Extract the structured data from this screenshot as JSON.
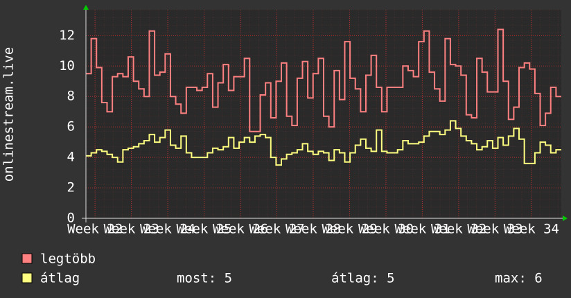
{
  "chart_data": {
    "type": "line",
    "y_label": "onlinestream.live",
    "xlim": [
      21.75,
      34.82
    ],
    "xticks": [
      {
        "value": 22,
        "label": "Week 22"
      },
      {
        "value": 23,
        "label": "Week 23"
      },
      {
        "value": 24,
        "label": "Week 24"
      },
      {
        "value": 25,
        "label": "Week 25"
      },
      {
        "value": 26,
        "label": "Week 26"
      },
      {
        "value": 27,
        "label": "Week 27"
      },
      {
        "value": 28,
        "label": "Week 28"
      },
      {
        "value": 29,
        "label": "Week 29"
      },
      {
        "value": 30,
        "label": "Week 30"
      },
      {
        "value": 31,
        "label": "Week 31"
      },
      {
        "value": 32,
        "label": "Week 32"
      },
      {
        "value": 33,
        "label": "Week 33"
      },
      {
        "value": 34,
        "label": "Week 34"
      }
    ],
    "ylim": [
      0,
      13.7
    ],
    "yticks": [
      0,
      2,
      4,
      6,
      8,
      10,
      12
    ],
    "grid": true,
    "series": [
      {
        "name": "legtöbb",
        "color": "#ff8080",
        "values": [
          9.5,
          11.8,
          9.9,
          7.6,
          7.0,
          9.3,
          9.5,
          9.3,
          10.6,
          9.0,
          8.5,
          8.0,
          12.3,
          9.4,
          9.6,
          10.8,
          8.0,
          7.5,
          6.9,
          8.6,
          8.6,
          8.4,
          8.6,
          9.5,
          7.3,
          8.9,
          10.1,
          8.4,
          9.3,
          9.3,
          10.5,
          5.7,
          5.7,
          8.1,
          8.9,
          6.6,
          9.0,
          10.2,
          6.7,
          6.1,
          9.2,
          10.3,
          7.9,
          9.5,
          10.5,
          6.7,
          6.0,
          9.7,
          7.8,
          11.6,
          9.2,
          8.5,
          7.0,
          9.4,
          10.7,
          8.6,
          7.0,
          8.6,
          8.6,
          8.6,
          10.0,
          9.7,
          9.3,
          11.6,
          12.3,
          9.6,
          8.5,
          7.7,
          11.8,
          10.1,
          10.0,
          9.4,
          6.8,
          6.6,
          10.5,
          9.6,
          8.3,
          8.3,
          12.4,
          9.0,
          6.5,
          7.3,
          9.9,
          10.2,
          9.8,
          8.2,
          6.1,
          6.9,
          8.6,
          8.0
        ]
      },
      {
        "name": "átlag",
        "color": "#ffff80",
        "values": [
          4.1,
          4.3,
          4.5,
          4.4,
          4.2,
          4.0,
          3.7,
          4.5,
          4.6,
          4.7,
          4.9,
          5.1,
          5.5,
          5.0,
          5.3,
          5.8,
          4.8,
          4.6,
          5.4,
          4.3,
          4.0,
          4.0,
          4.0,
          4.3,
          4.6,
          4.5,
          4.7,
          5.3,
          4.6,
          5.0,
          5.3,
          5.0,
          5.4,
          5.5,
          5.3,
          4.0,
          3.5,
          3.9,
          4.2,
          4.3,
          4.5,
          4.9,
          4.4,
          4.2,
          4.4,
          4.3,
          3.8,
          4.5,
          4.3,
          3.7,
          4.3,
          4.8,
          5.2,
          4.6,
          4.4,
          5.8,
          4.4,
          4.3,
          4.3,
          4.5,
          5.1,
          4.9,
          4.9,
          5.0,
          5.4,
          5.7,
          5.7,
          5.5,
          5.8,
          6.4,
          5.9,
          5.4,
          5.1,
          4.9,
          4.5,
          4.7,
          5.1,
          4.6,
          5.3,
          4.8,
          5.4,
          5.9,
          5.2,
          3.6,
          3.6,
          4.3,
          5.0,
          4.8,
          4.3,
          4.5
        ]
      }
    ],
    "stats": [
      "most: 5",
      "átlag: 5",
      "max: 6"
    ]
  }
}
